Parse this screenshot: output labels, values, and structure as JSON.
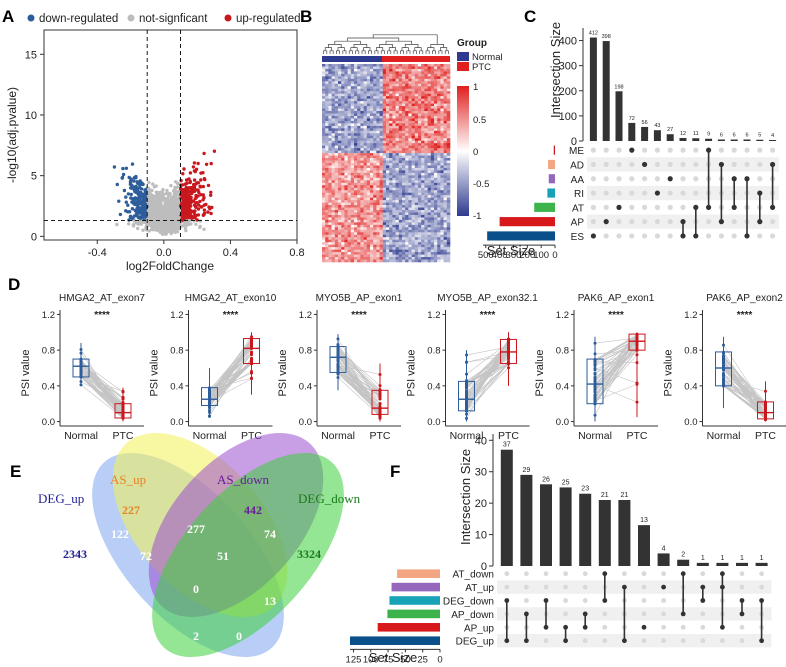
{
  "panel_labels": {
    "a": "A",
    "b": "B",
    "c": "C",
    "d": "D",
    "e": "E",
    "f": "F"
  },
  "colors": {
    "up": "#c8181e",
    "down": "#2e5d9b",
    "ns": "#bdbdbd",
    "bar": "#333333"
  },
  "panel_a": {
    "legend": [
      "down-regulated",
      "not-signficant",
      "up-regulated"
    ],
    "chart_data": {
      "type": "scatter",
      "title": "",
      "xlabel": "log2FoldChange",
      "ylabel": "-log10(adj.pvalue)",
      "xlim": [
        -0.72,
        0.8
      ],
      "ylim": [
        -0.3,
        17
      ],
      "xticks": [
        "-0.4",
        "0.0",
        "0.4",
        "0.8"
      ],
      "xtick_values": [
        -0.4,
        0.0,
        0.4,
        0.8
      ],
      "yticks": [
        "0",
        "5",
        "10",
        "15"
      ],
      "ytick_values": [
        0,
        5,
        10,
        15
      ],
      "thresholds": {
        "fc": [
          -0.1,
          0.1
        ],
        "p": 1.3
      },
      "series": [
        {
          "name": "down-regulated"
        },
        {
          "name": "not-signficant"
        },
        {
          "name": "up-regulated"
        }
      ]
    }
  },
  "panel_b": {
    "legend_title": "Group",
    "groups": [
      "Normal",
      "PTC"
    ],
    "colorbar_ticks": [
      "1",
      "0.5",
      "0",
      "-0.5",
      "-1"
    ],
    "chart_data": {
      "type": "heatmap",
      "groups": [
        "Normal",
        "PTC"
      ],
      "scale": [
        -1,
        1
      ]
    }
  },
  "panel_c": {
    "ylabel": "Intersection Size",
    "yticks": [
      "0",
      "100",
      "200",
      "300",
      "400"
    ],
    "set_size_label": "Set Size",
    "set_size_ticks": [
      "500",
      "400",
      "300",
      "200",
      "100",
      "0"
    ],
    "chart_data": {
      "type": "bar",
      "sets": [
        "ME",
        "AD",
        "AA",
        "RI",
        "AT",
        "AP",
        "ES"
      ],
      "set_sizes": [
        9,
        50,
        45,
        55,
        150,
        400,
        490
      ],
      "set_colors": [
        "#c8181e",
        "#f4a582",
        "#9467bd",
        "#17a2b8",
        "#3cb44b",
        "#d7191c",
        "#0b4f8a"
      ],
      "values": [
        412,
        398,
        198,
        72,
        56,
        43,
        27,
        12,
        11,
        9,
        6,
        6,
        6,
        5,
        4
      ],
      "combos": [
        [
          6
        ],
        [
          5
        ],
        [
          4
        ],
        [
          0
        ],
        [
          1
        ],
        [
          3
        ],
        [
          2
        ],
        [
          5,
          6
        ],
        [
          4,
          6
        ],
        [
          0,
          4
        ],
        [
          1,
          5
        ],
        [
          2,
          4
        ],
        [
          2,
          6
        ],
        [
          3,
          5
        ],
        [
          1,
          4
        ]
      ]
    }
  },
  "panel_d": {
    "ylabel": "PSI value",
    "signif": "****",
    "xcats": [
      "Normal",
      "PTC"
    ],
    "yticks": [
      "0.0",
      "0.4",
      "0.8",
      "1.2"
    ],
    "chart_data": {
      "type": "box",
      "panels": [
        {
          "title": "HMGA2_AT_exon7",
          "normal": [
            0.4,
            0.5,
            0.62,
            0.7,
            0.88
          ],
          "ptc": [
            0.0,
            0.04,
            0.1,
            0.2,
            0.38
          ]
        },
        {
          "title": "HMGA2_AT_exon10",
          "normal": [
            0.05,
            0.18,
            0.25,
            0.38,
            0.6
          ],
          "ptc": [
            0.3,
            0.65,
            0.82,
            0.93,
            1.0
          ]
        },
        {
          "title": "MYO5B_AP_exon1",
          "normal": [
            0.35,
            0.55,
            0.72,
            0.84,
            0.98
          ],
          "ptc": [
            0.0,
            0.08,
            0.15,
            0.35,
            0.65
          ]
        },
        {
          "title": "MYO5B_AP_exon32.1",
          "normal": [
            0.0,
            0.12,
            0.25,
            0.45,
            0.8
          ],
          "ptc": [
            0.4,
            0.65,
            0.78,
            0.92,
            1.0
          ]
        },
        {
          "title": "PAK6_AP_exon1",
          "normal": [
            0.0,
            0.2,
            0.42,
            0.7,
            0.95
          ],
          "ptc": [
            0.05,
            0.8,
            0.9,
            0.98,
            1.0
          ]
        },
        {
          "title": "PAK6_AP_exon2",
          "normal": [
            0.15,
            0.4,
            0.6,
            0.78,
            0.95
          ],
          "ptc": [
            0.0,
            0.03,
            0.1,
            0.22,
            0.45
          ]
        }
      ]
    }
  },
  "panel_e": {
    "sets": [
      {
        "label": "DEG_up",
        "color": "#1f1f8f"
      },
      {
        "label": "AS_up",
        "color": "#e8832a"
      },
      {
        "label": "AS_down",
        "color": "#6a1b9a"
      },
      {
        "label": "DEG_down",
        "color": "#1a7a1a"
      }
    ],
    "counts": {
      "deg_up": "2343",
      "as_up": "227",
      "as_down": "442",
      "deg_down": "3324",
      "n122": "122",
      "n277": "277",
      "n74": "74",
      "n72": "72",
      "n51": "51",
      "n0a": "0",
      "n20": "20",
      "n13": "13",
      "n0b": "0",
      "n0c": "0",
      "n2": "2"
    }
  },
  "panel_f": {
    "ylabel": "Intersection Size",
    "yticks": [
      "0",
      "10",
      "20",
      "30",
      "40"
    ],
    "set_size_label": "Set Size",
    "set_size_ticks": [
      "125",
      "100",
      "75",
      "50",
      "25",
      "0"
    ],
    "chart_data": {
      "type": "bar",
      "sets": [
        "AT_down",
        "AT_up",
        "DEG_down",
        "AP_down",
        "AP_up",
        "DEG_up"
      ],
      "set_sizes": [
        62,
        70,
        73,
        76,
        90,
        130
      ],
      "set_colors": [
        "#f4a582",
        "#9467bd",
        "#17a2b8",
        "#3cb44b",
        "#d7191c",
        "#0b4f8a"
      ],
      "values": [
        37,
        29,
        26,
        25,
        23,
        21,
        21,
        13,
        4,
        2,
        1,
        1,
        1,
        1
      ],
      "labels": [
        "37",
        "29",
        "26",
        "25",
        "23",
        "21",
        "21",
        "13",
        "4",
        "2",
        "1",
        "1",
        "1",
        "1"
      ],
      "combos": [
        [
          2,
          5
        ],
        [
          3,
          5
        ],
        [
          2,
          4
        ],
        [
          4,
          5
        ],
        [
          3,
          4
        ],
        [
          0,
          2
        ],
        [
          1,
          5
        ],
        [
          4
        ],
        [
          1
        ],
        [
          0,
          3
        ],
        [
          1,
          2
        ],
        [
          0,
          1,
          4
        ],
        [
          2,
          3
        ],
        [
          2,
          5
        ]
      ]
    }
  }
}
